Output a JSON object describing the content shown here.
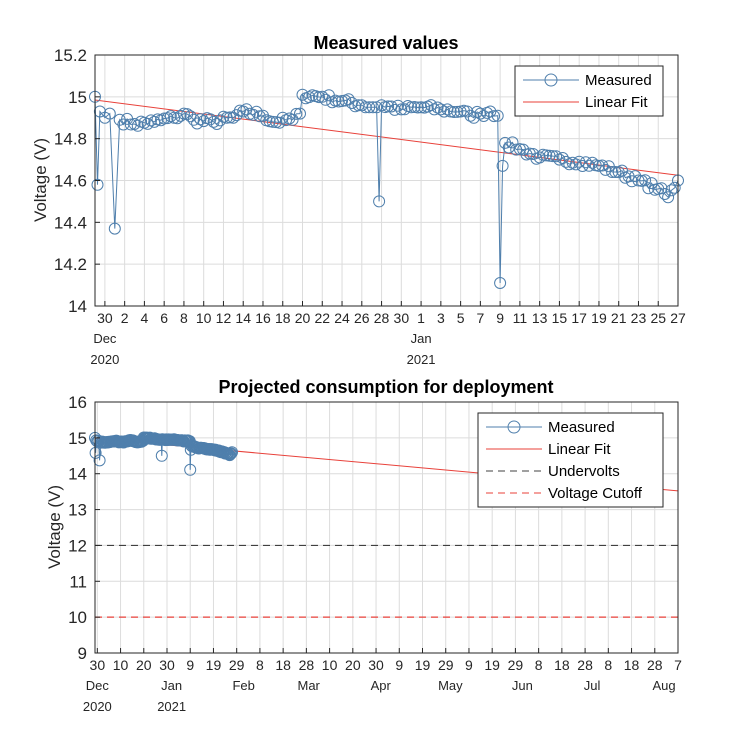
{
  "chart_data": [
    {
      "type": "line",
      "title": "Measured values",
      "ylabel": "Voltage (V)",
      "ylim": [
        14.0,
        15.2
      ],
      "yticks": [
        "14",
        "14.2",
        "14.4",
        "14.6",
        "14.8",
        "15",
        "15.2"
      ],
      "yticks_values": [
        14.0,
        14.2,
        14.4,
        14.6,
        14.8,
        15.0,
        15.2
      ],
      "xlim": [
        "2020-11-29",
        "2021-01-27"
      ],
      "xtick_labels": [
        "30",
        "2",
        "4",
        "6",
        "8",
        "10",
        "12",
        "14",
        "16",
        "18",
        "20",
        "22",
        "24",
        "26",
        "28",
        "30",
        "1",
        "3",
        "5",
        "7",
        "9",
        "11",
        "13",
        "15",
        "17",
        "19",
        "21",
        "23",
        "25",
        "27"
      ],
      "x_month_labels": [
        {
          "text": "Dec",
          "date": "2020-11-30"
        },
        {
          "text": "Jan",
          "date": "2021-01-01"
        }
      ],
      "x_year_labels": [
        {
          "text": "2020",
          "date": "2020-11-30"
        },
        {
          "text": "2021",
          "date": "2021-01-01"
        }
      ],
      "grid": true,
      "legend": {
        "placement": "top-right",
        "entries": [
          {
            "label": "Measured",
            "style": "line-circle",
            "color": "#4f7fac"
          },
          {
            "label": "Linear Fit",
            "style": "line",
            "color": "#e8413a"
          }
        ]
      },
      "series": [
        {
          "name": "Measured",
          "color": "#4f7fac",
          "marker": "circle",
          "anchors": [
            [
              "2020-11-29T00:00",
              15.0
            ],
            [
              "2020-11-29T06:00",
              14.58
            ],
            [
              "2020-11-29T12:00",
              14.93
            ],
            [
              "2020-11-30T00:00",
              14.9
            ],
            [
              "2020-11-30T12:00",
              14.92
            ],
            [
              "2020-12-01T00:00",
              14.37
            ],
            [
              "2020-12-01T12:00",
              14.89
            ],
            [
              "2020-12-03T00:00",
              14.87
            ],
            [
              "2020-12-05T00:00",
              14.88
            ],
            [
              "2020-12-07T00:00",
              14.9
            ],
            [
              "2020-12-08T00:00",
              14.92
            ],
            [
              "2020-12-09T00:00",
              14.89
            ],
            [
              "2020-12-11T00:00",
              14.88
            ],
            [
              "2020-12-13T00:00",
              14.9
            ],
            [
              "2020-12-14T00:00",
              14.93
            ],
            [
              "2020-12-16T00:00",
              14.91
            ],
            [
              "2020-12-17T00:00",
              14.88
            ],
            [
              "2020-12-19T00:00",
              14.89
            ],
            [
              "2020-12-19T18:00",
              14.92
            ],
            [
              "2020-12-20T00:00",
              15.01
            ],
            [
              "2020-12-22T00:00",
              15.0
            ],
            [
              "2020-12-24T00:00",
              14.98
            ],
            [
              "2020-12-26T00:00",
              14.96
            ],
            [
              "2020-12-27T12:00",
              14.95
            ],
            [
              "2020-12-27T18:00",
              14.5
            ],
            [
              "2020-12-28T00:00",
              14.96
            ],
            [
              "2020-12-30T00:00",
              14.94
            ],
            [
              "2021-01-01T00:00",
              14.95
            ],
            [
              "2021-01-03T00:00",
              14.94
            ],
            [
              "2021-01-05T00:00",
              14.93
            ],
            [
              "2021-01-06T00:00",
              14.91
            ],
            [
              "2021-01-07T00:00",
              14.92
            ],
            [
              "2021-01-08T00:00",
              14.93
            ],
            [
              "2021-01-08T18:00",
              14.91
            ],
            [
              "2021-01-09T00:00",
              14.11
            ],
            [
              "2021-01-09T06:00",
              14.67
            ],
            [
              "2021-01-09T12:00",
              14.78
            ],
            [
              "2021-01-11T00:00",
              14.75
            ],
            [
              "2021-01-13T00:00",
              14.71
            ],
            [
              "2021-01-15T00:00",
              14.7
            ],
            [
              "2021-01-17T00:00",
              14.69
            ],
            [
              "2021-01-19T00:00",
              14.67
            ],
            [
              "2021-01-21T00:00",
              14.64
            ],
            [
              "2021-01-23T00:00",
              14.6
            ],
            [
              "2021-01-25T00:00",
              14.56
            ],
            [
              "2021-01-26T00:00",
              14.52
            ],
            [
              "2021-01-27T00:00",
              14.6
            ]
          ]
        },
        {
          "name": "Linear Fit",
          "color": "#e8413a",
          "x": [
            "2020-11-29",
            "2021-01-27"
          ],
          "y": [
            14.985,
            14.625
          ]
        }
      ]
    },
    {
      "type": "line",
      "title": "Projected consumption for deployment",
      "ylabel": "Voltage (V)",
      "ylim": [
        9,
        16
      ],
      "yticks": [
        "9",
        "10",
        "11",
        "12",
        "13",
        "14",
        "15",
        "16"
      ],
      "yticks_values": [
        9,
        10,
        11,
        12,
        13,
        14,
        15,
        16
      ],
      "xlim": [
        "2020-11-29",
        "2021-08-07"
      ],
      "xtick_labels": [
        "30",
        "10",
        "20",
        "30",
        "9",
        "19",
        "29",
        "8",
        "18",
        "28",
        "10",
        "20",
        "30",
        "9",
        "19",
        "29",
        "9",
        "19",
        "29",
        "8",
        "18",
        "28",
        "8",
        "18",
        "28",
        "7"
      ],
      "x_month_labels": [
        {
          "text": "Dec",
          "date": "2020-11-30"
        },
        {
          "text": "Jan",
          "date": "2021-01-01"
        },
        {
          "text": "Feb",
          "date": "2021-02-01"
        },
        {
          "text": "Mar",
          "date": "2021-03-01"
        },
        {
          "text": "Apr",
          "date": "2021-04-01"
        },
        {
          "text": "May",
          "date": "2021-05-01"
        },
        {
          "text": "Jun",
          "date": "2021-06-01"
        },
        {
          "text": "Jul",
          "date": "2021-07-01"
        },
        {
          "text": "Aug",
          "date": "2021-08-01"
        }
      ],
      "x_year_labels": [
        {
          "text": "2020",
          "date": "2020-11-30"
        },
        {
          "text": "2021",
          "date": "2021-01-01"
        }
      ],
      "grid": true,
      "legend": {
        "placement": "top-right",
        "entries": [
          {
            "label": "Measured",
            "style": "line-circle",
            "color": "#4f7fac"
          },
          {
            "label": "Linear Fit",
            "style": "line",
            "color": "#e8413a"
          },
          {
            "label": "Undervolts",
            "style": "dashed",
            "color": "#404040"
          },
          {
            "label": "Voltage Cutoff",
            "style": "dashed",
            "color": "#e8413a"
          }
        ]
      },
      "series": [
        {
          "name": "Measured",
          "color": "#4f7fac",
          "marker": "circle",
          "same_as_chart": 0
        },
        {
          "name": "Linear Fit",
          "color": "#e8413a",
          "x": [
            "2020-11-29",
            "2021-08-07"
          ],
          "y": [
            14.985,
            13.52
          ]
        },
        {
          "name": "Undervolts",
          "color": "#404040",
          "style": "dashed",
          "y_const": 12
        },
        {
          "name": "Voltage Cutoff",
          "color": "#e8413a",
          "style": "dashed",
          "y_const": 10
        }
      ]
    }
  ]
}
